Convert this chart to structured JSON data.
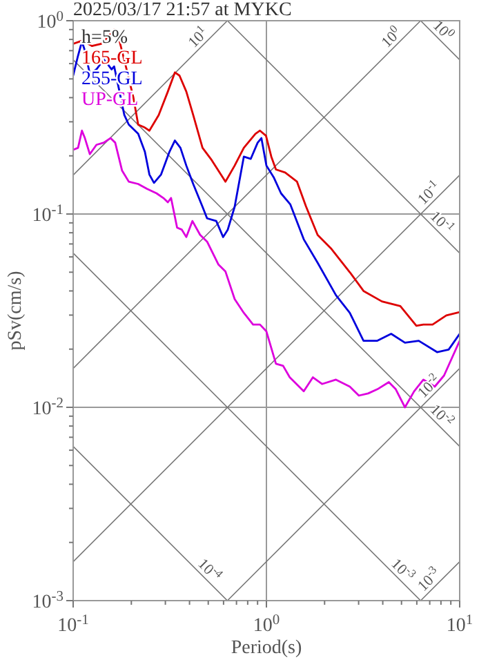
{
  "chart_data": {
    "type": "line",
    "title": "2025/03/17 21:57 at MYKC",
    "xlabel": "Period(s)",
    "ylabel": "pSv(cm/s)",
    "log": "xy",
    "grid": true,
    "legend": "top left",
    "annotations": [
      "h=5%"
    ],
    "xlim": [
      0.1,
      10
    ],
    "ylim": [
      0.001,
      1
    ],
    "xticks": [
      {
        "value": 0.1,
        "label": "10$^{-1}$"
      },
      {
        "value": 0.2,
        "label": null
      },
      {
        "value": 0.3,
        "label": null
      },
      {
        "value": 0.4,
        "label": null
      },
      {
        "value": 0.5,
        "label": null
      },
      {
        "value": 0.6,
        "label": null
      },
      {
        "value": 0.7,
        "label": null
      },
      {
        "value": 0.8,
        "label": null
      },
      {
        "value": 0.9,
        "label": null
      },
      {
        "value": 1,
        "label": "10$^{0}$"
      },
      {
        "value": 2,
        "label": null
      },
      {
        "value": 3,
        "label": null
      },
      {
        "value": 4,
        "label": null
      },
      {
        "value": 5,
        "label": null
      },
      {
        "value": 6,
        "label": null
      },
      {
        "value": 7,
        "label": null
      },
      {
        "value": 8,
        "label": null
      },
      {
        "value": 9,
        "label": null
      },
      {
        "value": 10,
        "label": "10$^{1}$"
      }
    ],
    "yticks": [
      {
        "value": 0.001,
        "label": "10$^{-3}$"
      },
      {
        "value": 0.002,
        "label": null
      },
      {
        "value": 0.003,
        "label": null
      },
      {
        "value": 0.004,
        "label": null
      },
      {
        "value": 0.005,
        "label": null
      },
      {
        "value": 0.006,
        "label": null
      },
      {
        "value": 0.007,
        "label": null
      },
      {
        "value": 0.008,
        "label": null
      },
      {
        "value": 0.009,
        "label": null
      },
      {
        "value": 0.01,
        "label": "10$^{-2}$"
      },
      {
        "value": 0.02,
        "label": null
      },
      {
        "value": 0.03,
        "label": null
      },
      {
        "value": 0.04,
        "label": null
      },
      {
        "value": 0.05,
        "label": null
      },
      {
        "value": 0.06,
        "label": null
      },
      {
        "value": 0.07,
        "label": null
      },
      {
        "value": 0.08,
        "label": null
      },
      {
        "value": 0.09,
        "label": null
      },
      {
        "value": 0.1,
        "label": "10$^{-1}$"
      },
      {
        "value": 0.2,
        "label": null
      },
      {
        "value": 0.3,
        "label": null
      },
      {
        "value": 0.4,
        "label": null
      },
      {
        "value": 0.5,
        "label": null
      },
      {
        "value": 0.6,
        "label": null
      },
      {
        "value": 0.7,
        "label": null
      },
      {
        "value": 0.8,
        "label": null
      },
      {
        "value": 0.9,
        "label": null
      },
      {
        "value": 1,
        "label": "10$^{0}$"
      }
    ],
    "series": [
      {
        "name": "10$^{1}$",
        "color": "#777777",
        "x": [
          0.1,
          0.628
        ],
        "values": [
          0.159,
          1
        ]
      },
      {
        "name": "10$^{0}$",
        "color": "#777777",
        "x": [
          0.1,
          6.28
        ],
        "values": [
          0.0159,
          1
        ]
      },
      {
        "name": "10$^{-1}$",
        "color": "#777777",
        "x": [
          0.1,
          10
        ],
        "values": [
          0.00159,
          0.159
        ]
      },
      {
        "name": "10$^{-2}$",
        "color": "#777777",
        "x": [
          0.628,
          10
        ],
        "values": [
          0.001,
          0.0159
        ]
      },
      {
        "name": "10$^{-3}$",
        "color": "#777777",
        "x": [
          6.28,
          10
        ],
        "values": [
          0.001,
          0.00159
        ]
      },
      {
        "name": "10$^{0}$",
        "color": "#777777",
        "x": [
          6.28,
          10
        ],
        "values": [
          1,
          0.628
        ]
      },
      {
        "name": "10$^{-1}$",
        "color": "#777777",
        "x": [
          0.628,
          10
        ],
        "values": [
          1,
          0.0628
        ]
      },
      {
        "name": "10$^{-2}$",
        "color": "#777777",
        "x": [
          0.1,
          10
        ],
        "values": [
          0.628,
          0.00628
        ]
      },
      {
        "name": "10$^{-3}$",
        "color": "#777777",
        "x": [
          0.1,
          6.28
        ],
        "values": [
          0.0628,
          0.001
        ]
      },
      {
        "name": "10$^{-4}$",
        "color": "#777777",
        "x": [
          0.1,
          0.628
        ],
        "values": [
          0.00628,
          0.001
        ]
      },
      {
        "name": "165-GL",
        "color": "#dd0000",
        "x": [
          0.1,
          0.112,
          0.125,
          0.14,
          0.152,
          0.163,
          0.174,
          0.189,
          0.205,
          0.217,
          0.235,
          0.248,
          0.277,
          0.309,
          0.336,
          0.355,
          0.385,
          0.418,
          0.467,
          0.521,
          0.614,
          0.685,
          0.764,
          0.877,
          0.926,
          0.995,
          1.06,
          1.12,
          1.25,
          1.44,
          1.6,
          1.84,
          2.17,
          2.7,
          3.18,
          3.96,
          4.93,
          5.97,
          6.49,
          7.24,
          8.53,
          10
        ],
        "values": [
          0.76,
          0.79,
          0.74,
          0.76,
          0.83,
          0.9,
          0.78,
          0.56,
          0.4,
          0.29,
          0.28,
          0.27,
          0.325,
          0.43,
          0.54,
          0.52,
          0.43,
          0.325,
          0.22,
          0.19,
          0.147,
          0.178,
          0.22,
          0.26,
          0.27,
          0.254,
          0.198,
          0.17,
          0.164,
          0.147,
          0.11,
          0.078,
          0.066,
          0.05,
          0.04,
          0.0353,
          0.0334,
          0.0264,
          0.0268,
          0.0268,
          0.0299,
          0.0311
        ]
      },
      {
        "name": "255-GL",
        "color": "#0000dd",
        "x": [
          0.1,
          0.106,
          0.111,
          0.115,
          0.122,
          0.132,
          0.144,
          0.152,
          0.158,
          0.163,
          0.172,
          0.184,
          0.194,
          0.217,
          0.235,
          0.248,
          0.262,
          0.285,
          0.315,
          0.336,
          0.359,
          0.385,
          0.418,
          0.467,
          0.493,
          0.55,
          0.597,
          0.631,
          0.685,
          0.764,
          0.83,
          0.901,
          0.942,
          1,
          1.09,
          1.19,
          1.33,
          1.56,
          1.84,
          2.29,
          2.7,
          3.18,
          3.75,
          4.42,
          5.21,
          6.14,
          7.64,
          8.77,
          10
        ],
        "values": [
          0.52,
          0.66,
          0.78,
          0.7,
          0.53,
          0.56,
          0.63,
          0.59,
          0.56,
          0.58,
          0.45,
          0.325,
          0.29,
          0.26,
          0.21,
          0.16,
          0.145,
          0.16,
          0.21,
          0.24,
          0.22,
          0.178,
          0.143,
          0.109,
          0.095,
          0.092,
          0.076,
          0.083,
          0.109,
          0.198,
          0.193,
          0.234,
          0.247,
          0.178,
          0.155,
          0.128,
          0.112,
          0.074,
          0.056,
          0.038,
          0.0308,
          0.0221,
          0.0221,
          0.024,
          0.0216,
          0.0221,
          0.0193,
          0.0199,
          0.024
        ]
      },
      {
        "name": "UP-GL",
        "color": "#dd00dd",
        "x": [
          0.1,
          0.106,
          0.111,
          0.115,
          0.122,
          0.132,
          0.144,
          0.156,
          0.165,
          0.179,
          0.194,
          0.217,
          0.241,
          0.27,
          0.293,
          0.309,
          0.321,
          0.345,
          0.365,
          0.385,
          0.414,
          0.454,
          0.493,
          0.565,
          0.614,
          0.685,
          0.764,
          0.853,
          0.926,
          1,
          1.12,
          1.22,
          1.32,
          1.56,
          1.74,
          1.94,
          2.29,
          2.7,
          3.01,
          3.36,
          3.75,
          4.3,
          4.67,
          5.21,
          5.81,
          6.49,
          7.43,
          8.3,
          10
        ],
        "values": [
          0.215,
          0.22,
          0.27,
          0.247,
          0.204,
          0.228,
          0.234,
          0.247,
          0.234,
          0.168,
          0.147,
          0.143,
          0.135,
          0.128,
          0.121,
          0.115,
          0.121,
          0.085,
          0.083,
          0.076,
          0.092,
          0.078,
          0.072,
          0.0547,
          0.0504,
          0.0363,
          0.0308,
          0.0268,
          0.0268,
          0.0247,
          0.0168,
          0.0164,
          0.0143,
          0.0121,
          0.0143,
          0.0132,
          0.0139,
          0.0128,
          0.0115,
          0.0118,
          0.0124,
          0.0135,
          0.0124,
          0.01,
          0.0121,
          0.0139,
          0.0128,
          0.0146,
          0.0221
        ]
      }
    ]
  }
}
